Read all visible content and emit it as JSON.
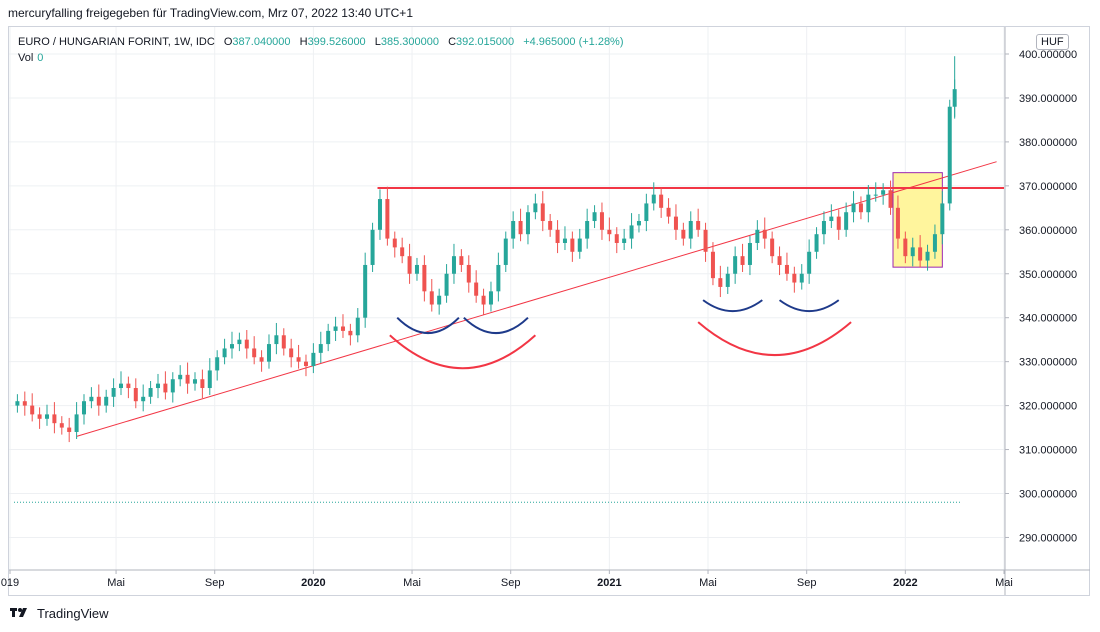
{
  "header": {
    "publish_line": "mercuryfalling freigegeben für TradingView.com, Mrz 07, 2022 13:40 UTC+1"
  },
  "legend": {
    "symbol": "EURO / HUNGARIAN FORINT, 1W, IDC",
    "open_label": "O",
    "open": "387.040000",
    "high_label": "H",
    "high": "399.526000",
    "low_label": "L",
    "low": "385.300000",
    "close_label": "C",
    "close": "392.015000",
    "change": "+4.965000 (+1.28%)",
    "vol_label": "Vol",
    "vol": "0"
  },
  "currency_badge": "HUF",
  "footer": {
    "brand": "TradingView",
    "logo_icon": "tradingview-logo-icon"
  },
  "colors": {
    "up": "#26a69a",
    "down": "#ef5350",
    "resistance": "#f23645",
    "trend": "#f23645",
    "arc_blue": "#1e3a8a",
    "arc_red": "#f23645",
    "highlight_fill": "#fff59d",
    "highlight_border": "#9c27b0"
  },
  "chart_data": {
    "type": "candlestick",
    "interval": "1W",
    "y_axis_ticks": [
      "400.000000",
      "390.000000",
      "380.000000",
      "370.000000",
      "360.000000",
      "350.000000",
      "340.000000",
      "330.000000",
      "320.000000",
      "310.000000",
      "300.000000",
      "290.000000"
    ],
    "y_tick_values": [
      400,
      390,
      380,
      370,
      360,
      350,
      340,
      330,
      320,
      310,
      300,
      290
    ],
    "ylim": [
      284,
      405
    ],
    "x_axis_labels": [
      {
        "label": "019",
        "t": -0.3,
        "bold": false
      },
      {
        "label": "Mai",
        "t": 4.0,
        "bold": false
      },
      {
        "label": "Sep",
        "t": 8.0,
        "bold": false
      },
      {
        "label": "2020",
        "t": 12.0,
        "bold": true
      },
      {
        "label": "Mai",
        "t": 16.0,
        "bold": false
      },
      {
        "label": "Sep",
        "t": 20.0,
        "bold": false
      },
      {
        "label": "2021",
        "t": 24.0,
        "bold": true
      },
      {
        "label": "Mai",
        "t": 28.0,
        "bold": false
      },
      {
        "label": "Sep",
        "t": 32.0,
        "bold": false
      },
      {
        "label": "2022",
        "t": 36.0,
        "bold": true
      },
      {
        "label": "Mai",
        "t": 40.0,
        "bold": false
      }
    ],
    "xlim": [
      -0.3,
      40.0
    ],
    "closes_months_approx": [
      [
        0.0,
        321
      ],
      [
        0.3,
        320
      ],
      [
        0.6,
        318
      ],
      [
        0.9,
        317
      ],
      [
        1.2,
        318
      ],
      [
        1.5,
        316
      ],
      [
        1.8,
        315
      ],
      [
        2.1,
        314
      ],
      [
        2.4,
        318
      ],
      [
        2.7,
        321
      ],
      [
        3.0,
        322
      ],
      [
        3.3,
        320
      ],
      [
        3.6,
        322
      ],
      [
        3.9,
        324
      ],
      [
        4.2,
        325
      ],
      [
        4.5,
        324
      ],
      [
        4.8,
        321
      ],
      [
        5.1,
        322
      ],
      [
        5.4,
        324
      ],
      [
        5.7,
        325
      ],
      [
        6.0,
        323
      ],
      [
        6.3,
        326
      ],
      [
        6.6,
        327
      ],
      [
        6.9,
        325
      ],
      [
        7.2,
        326
      ],
      [
        7.5,
        324
      ],
      [
        7.8,
        328
      ],
      [
        8.1,
        331
      ],
      [
        8.4,
        333
      ],
      [
        8.7,
        334
      ],
      [
        9.0,
        335
      ],
      [
        9.3,
        333
      ],
      [
        9.6,
        331
      ],
      [
        9.9,
        330
      ],
      [
        10.2,
        334
      ],
      [
        10.5,
        336
      ],
      [
        10.8,
        333
      ],
      [
        11.1,
        331
      ],
      [
        11.4,
        330
      ],
      [
        11.7,
        329
      ],
      [
        12.0,
        332
      ],
      [
        12.3,
        334
      ],
      [
        12.6,
        337
      ],
      [
        12.9,
        338
      ],
      [
        13.2,
        337
      ],
      [
        13.5,
        336
      ],
      [
        13.8,
        340
      ],
      [
        14.1,
        352
      ],
      [
        14.4,
        360
      ],
      [
        14.7,
        367
      ],
      [
        15.0,
        358
      ],
      [
        15.3,
        356
      ],
      [
        15.6,
        354
      ],
      [
        15.9,
        350
      ],
      [
        16.2,
        352
      ],
      [
        16.5,
        346
      ],
      [
        16.8,
        343
      ],
      [
        17.1,
        345
      ],
      [
        17.4,
        350
      ],
      [
        17.7,
        354
      ],
      [
        18.0,
        352
      ],
      [
        18.3,
        348
      ],
      [
        18.6,
        345
      ],
      [
        18.9,
        343
      ],
      [
        19.2,
        346
      ],
      [
        19.5,
        352
      ],
      [
        19.8,
        358
      ],
      [
        20.1,
        362
      ],
      [
        20.4,
        359
      ],
      [
        20.7,
        364
      ],
      [
        21.0,
        366
      ],
      [
        21.3,
        362
      ],
      [
        21.6,
        360
      ],
      [
        21.9,
        357
      ],
      [
        22.2,
        358
      ],
      [
        22.5,
        355
      ],
      [
        22.8,
        358
      ],
      [
        23.1,
        362
      ],
      [
        23.4,
        364
      ],
      [
        23.7,
        360
      ],
      [
        24.0,
        359
      ],
      [
        24.3,
        357
      ],
      [
        24.6,
        358
      ],
      [
        24.9,
        361
      ],
      [
        25.2,
        362
      ],
      [
        25.5,
        366
      ],
      [
        25.8,
        368
      ],
      [
        26.1,
        365
      ],
      [
        26.4,
        363
      ],
      [
        26.7,
        360
      ],
      [
        27.0,
        358
      ],
      [
        27.3,
        362
      ],
      [
        27.6,
        360
      ],
      [
        27.9,
        355
      ],
      [
        28.2,
        349
      ],
      [
        28.5,
        347
      ],
      [
        28.8,
        350
      ],
      [
        29.1,
        354
      ],
      [
        29.4,
        352
      ],
      [
        29.7,
        357
      ],
      [
        30.0,
        360
      ],
      [
        30.3,
        358
      ],
      [
        30.6,
        354
      ],
      [
        30.9,
        352
      ],
      [
        31.2,
        350
      ],
      [
        31.5,
        348
      ],
      [
        31.8,
        350
      ],
      [
        32.1,
        355
      ],
      [
        32.4,
        359
      ],
      [
        32.7,
        362
      ],
      [
        33.0,
        363
      ],
      [
        33.3,
        360
      ],
      [
        33.6,
        364
      ],
      [
        33.9,
        366
      ],
      [
        34.2,
        364
      ],
      [
        34.5,
        368
      ],
      [
        34.8,
        368
      ],
      [
        35.1,
        369
      ],
      [
        35.4,
        365
      ],
      [
        35.7,
        358
      ],
      [
        36.0,
        354
      ],
      [
        36.3,
        356
      ],
      [
        36.6,
        353
      ],
      [
        36.9,
        355
      ],
      [
        37.2,
        359
      ],
      [
        37.5,
        366
      ],
      [
        37.8,
        388
      ],
      [
        38.0,
        392
      ]
    ],
    "resistance_level": 369.5,
    "trendline": {
      "start": [
        2.4,
        313
      ],
      "end": [
        39.7,
        375.5
      ]
    },
    "highlight_box": {
      "t_range": [
        35.5,
        37.5
      ],
      "price_range": [
        351.5,
        373
      ]
    },
    "dotted_level": 298,
    "annotations_arcs": [
      {
        "color": "blue",
        "t_range": [
          15.4,
          17.9
        ],
        "price_bottom": 336.5,
        "price_top": 340
      },
      {
        "color": "blue",
        "t_range": [
          18.1,
          20.7
        ],
        "price_bottom": 336.5,
        "price_top": 340
      },
      {
        "color": "red",
        "t_range": [
          15.1,
          21.0
        ],
        "price_bottom": 328.5,
        "price_top": 336
      },
      {
        "color": "blue",
        "t_range": [
          27.8,
          30.2
        ],
        "price_bottom": 341.5,
        "price_top": 344
      },
      {
        "color": "blue",
        "t_range": [
          30.9,
          33.3
        ],
        "price_bottom": 341.5,
        "price_top": 344
      },
      {
        "color": "red",
        "t_range": [
          27.6,
          33.8
        ],
        "price_bottom": 331.5,
        "price_top": 339
      }
    ]
  }
}
